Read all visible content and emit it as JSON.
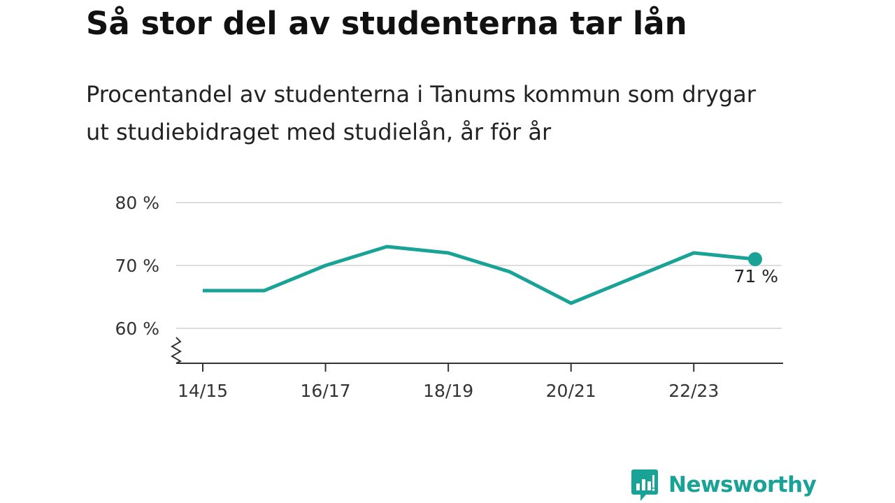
{
  "title": "Så stor del av studenterna tar lån",
  "subtitle": "Procentandel av studenterna i Tanums kommun som drygar ut studiebidraget med studielån, år för år",
  "brand": {
    "name": "Newsworthy",
    "color": "#19a296"
  },
  "chart_data": {
    "type": "line",
    "x": [
      "14/15",
      "15/16",
      "16/17",
      "17/18",
      "18/19",
      "19/20",
      "20/21",
      "21/22",
      "22/23",
      "23/24"
    ],
    "series": [
      {
        "values": [
          66,
          66,
          70,
          73,
          72,
          69,
          64,
          68,
          72,
          71
        ],
        "color": "#19a296"
      }
    ],
    "x_tick_labels": [
      "14/15",
      "16/17",
      "18/19",
      "20/21",
      "22/23"
    ],
    "y_ticks": [
      60,
      70,
      80
    ],
    "y_tick_labels": [
      "60 %",
      "70 %",
      "80 %"
    ],
    "ylim": [
      60,
      80
    ],
    "y_axis_break": true,
    "grid": true,
    "end_label": "71 %"
  }
}
